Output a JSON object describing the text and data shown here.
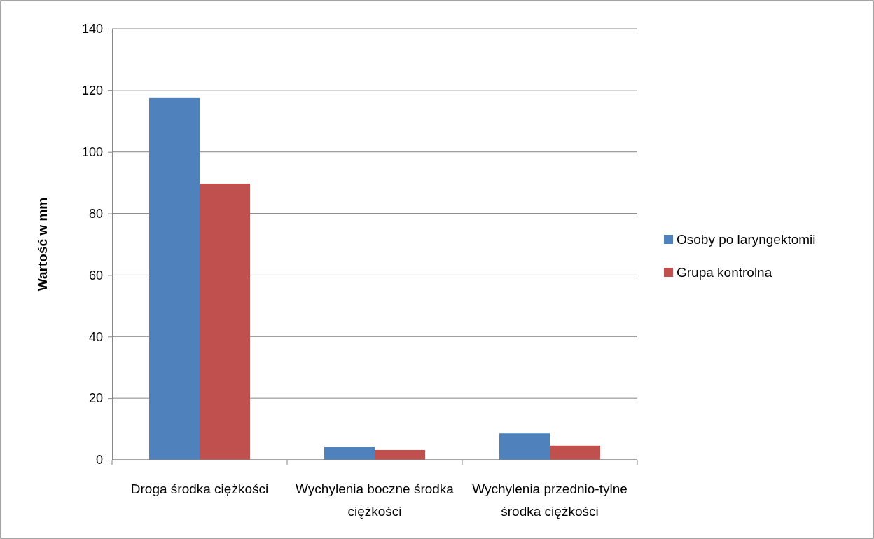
{
  "chart_data": {
    "type": "bar",
    "ylabel": "Wartość w mm",
    "categories": [
      "Droga środka ciężkości",
      "Wychylenia boczne środka ciężkości",
      "Wychylenia przednio-tylne środka ciężkości"
    ],
    "series": [
      {
        "name": "Osoby po laryngektomii",
        "color": "#4f81bd",
        "values": [
          117.5,
          4.1,
          8.6
        ]
      },
      {
        "name": "Grupa kontrolna",
        "color": "#c0504d",
        "values": [
          89.7,
          3.2,
          4.6
        ]
      }
    ],
    "ylim": [
      0,
      140
    ],
    "yticks": [
      0,
      20,
      40,
      60,
      80,
      100,
      120,
      140
    ],
    "grid": "y",
    "legend": "right"
  }
}
